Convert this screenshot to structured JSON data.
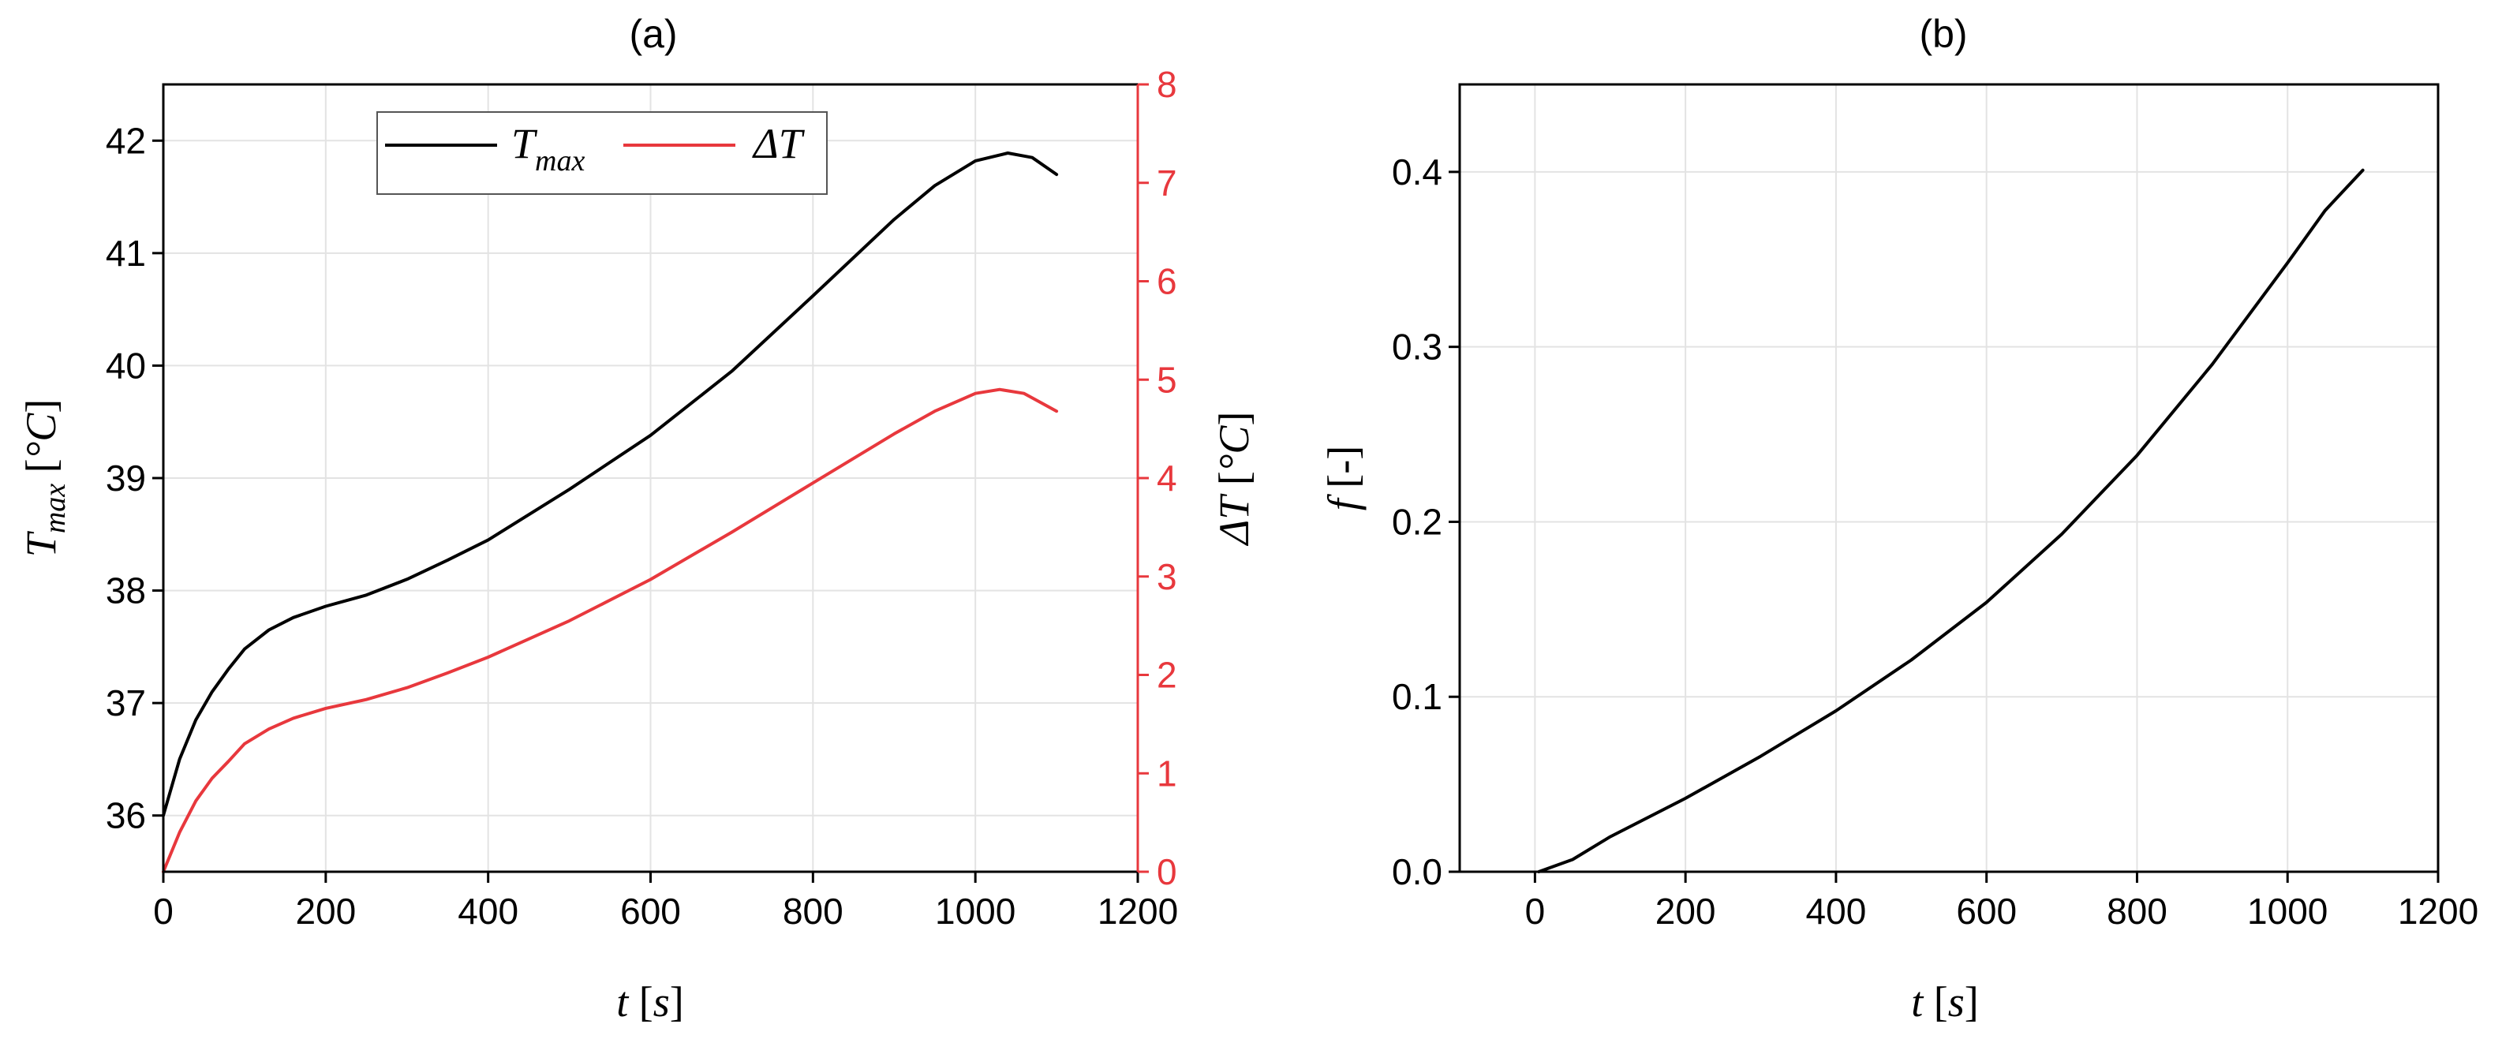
{
  "colors": {
    "tmax": "#000000",
    "dt": "#e8383d",
    "grid": "#e3e3e3"
  },
  "chart_data": [
    {
      "type": "line",
      "title": "(a)",
      "xlabel": {
        "italic": "t",
        "unit": "s"
      },
      "x_ticks": [
        "0",
        "200",
        "400",
        "600",
        "800",
        "1000",
        "1200"
      ],
      "xlim": [
        0,
        1200
      ],
      "ylabel_left": {
        "main": "T",
        "sub": "max",
        "unit": "°C"
      },
      "ylim_left": [
        35.5,
        42.5
      ],
      "y_ticks_left": [
        "36",
        "37",
        "38",
        "39",
        "40",
        "41",
        "42"
      ],
      "ylabel_right": {
        "main": "ΔT",
        "unit": "°C"
      },
      "ylim_right": [
        0,
        8
      ],
      "y_ticks_right": [
        "0",
        "1",
        "2",
        "3",
        "4",
        "5",
        "6",
        "7",
        "8"
      ],
      "grid": true,
      "legend_position": "top",
      "legend": [
        {
          "main": "T",
          "sub": "max"
        },
        {
          "main": "ΔT",
          "sub": ""
        }
      ],
      "series": [
        {
          "name": "T_max",
          "axis": "left",
          "x": [
            0,
            20,
            40,
            60,
            80,
            100,
            130,
            160,
            200,
            250,
            300,
            350,
            400,
            500,
            600,
            700,
            800,
            900,
            950,
            1000,
            1040,
            1070,
            1100
          ],
          "y": [
            36.0,
            36.5,
            36.85,
            37.1,
            37.3,
            37.48,
            37.65,
            37.76,
            37.86,
            37.96,
            38.1,
            38.27,
            38.45,
            38.9,
            39.38,
            39.95,
            40.62,
            41.3,
            41.6,
            41.82,
            41.89,
            41.85,
            41.7
          ]
        },
        {
          "name": "ΔT",
          "axis": "right",
          "x": [
            0,
            20,
            40,
            60,
            80,
            100,
            130,
            160,
            200,
            250,
            300,
            350,
            400,
            500,
            600,
            700,
            800,
            900,
            950,
            1000,
            1030,
            1060,
            1100
          ],
          "y": [
            0.0,
            0.4,
            0.72,
            0.95,
            1.12,
            1.3,
            1.45,
            1.56,
            1.66,
            1.75,
            1.87,
            2.02,
            2.18,
            2.55,
            2.97,
            3.45,
            3.95,
            4.45,
            4.68,
            4.86,
            4.9,
            4.86,
            4.68
          ]
        }
      ]
    },
    {
      "type": "line",
      "title": "(b)",
      "xlabel": {
        "italic": "t",
        "unit": "s"
      },
      "x_ticks": [
        "0",
        "200",
        "400",
        "600",
        "800",
        "1000",
        "1200"
      ],
      "xlim": [
        -100,
        1200
      ],
      "ylabel": {
        "italic": "f",
        "unit": "-"
      },
      "ylim": [
        0,
        0.45
      ],
      "y_ticks": [
        "0.0",
        "0.1",
        "0.2",
        "0.3",
        "0.4"
      ],
      "grid": true,
      "series": [
        {
          "name": "f",
          "x": [
            5,
            50,
            100,
            200,
            300,
            400,
            500,
            600,
            700,
            800,
            900,
            1000,
            1050,
            1100
          ],
          "y": [
            0.0,
            0.007,
            0.02,
            0.042,
            0.066,
            0.092,
            0.121,
            0.154,
            0.193,
            0.238,
            0.29,
            0.348,
            0.378,
            0.401
          ]
        }
      ]
    }
  ]
}
